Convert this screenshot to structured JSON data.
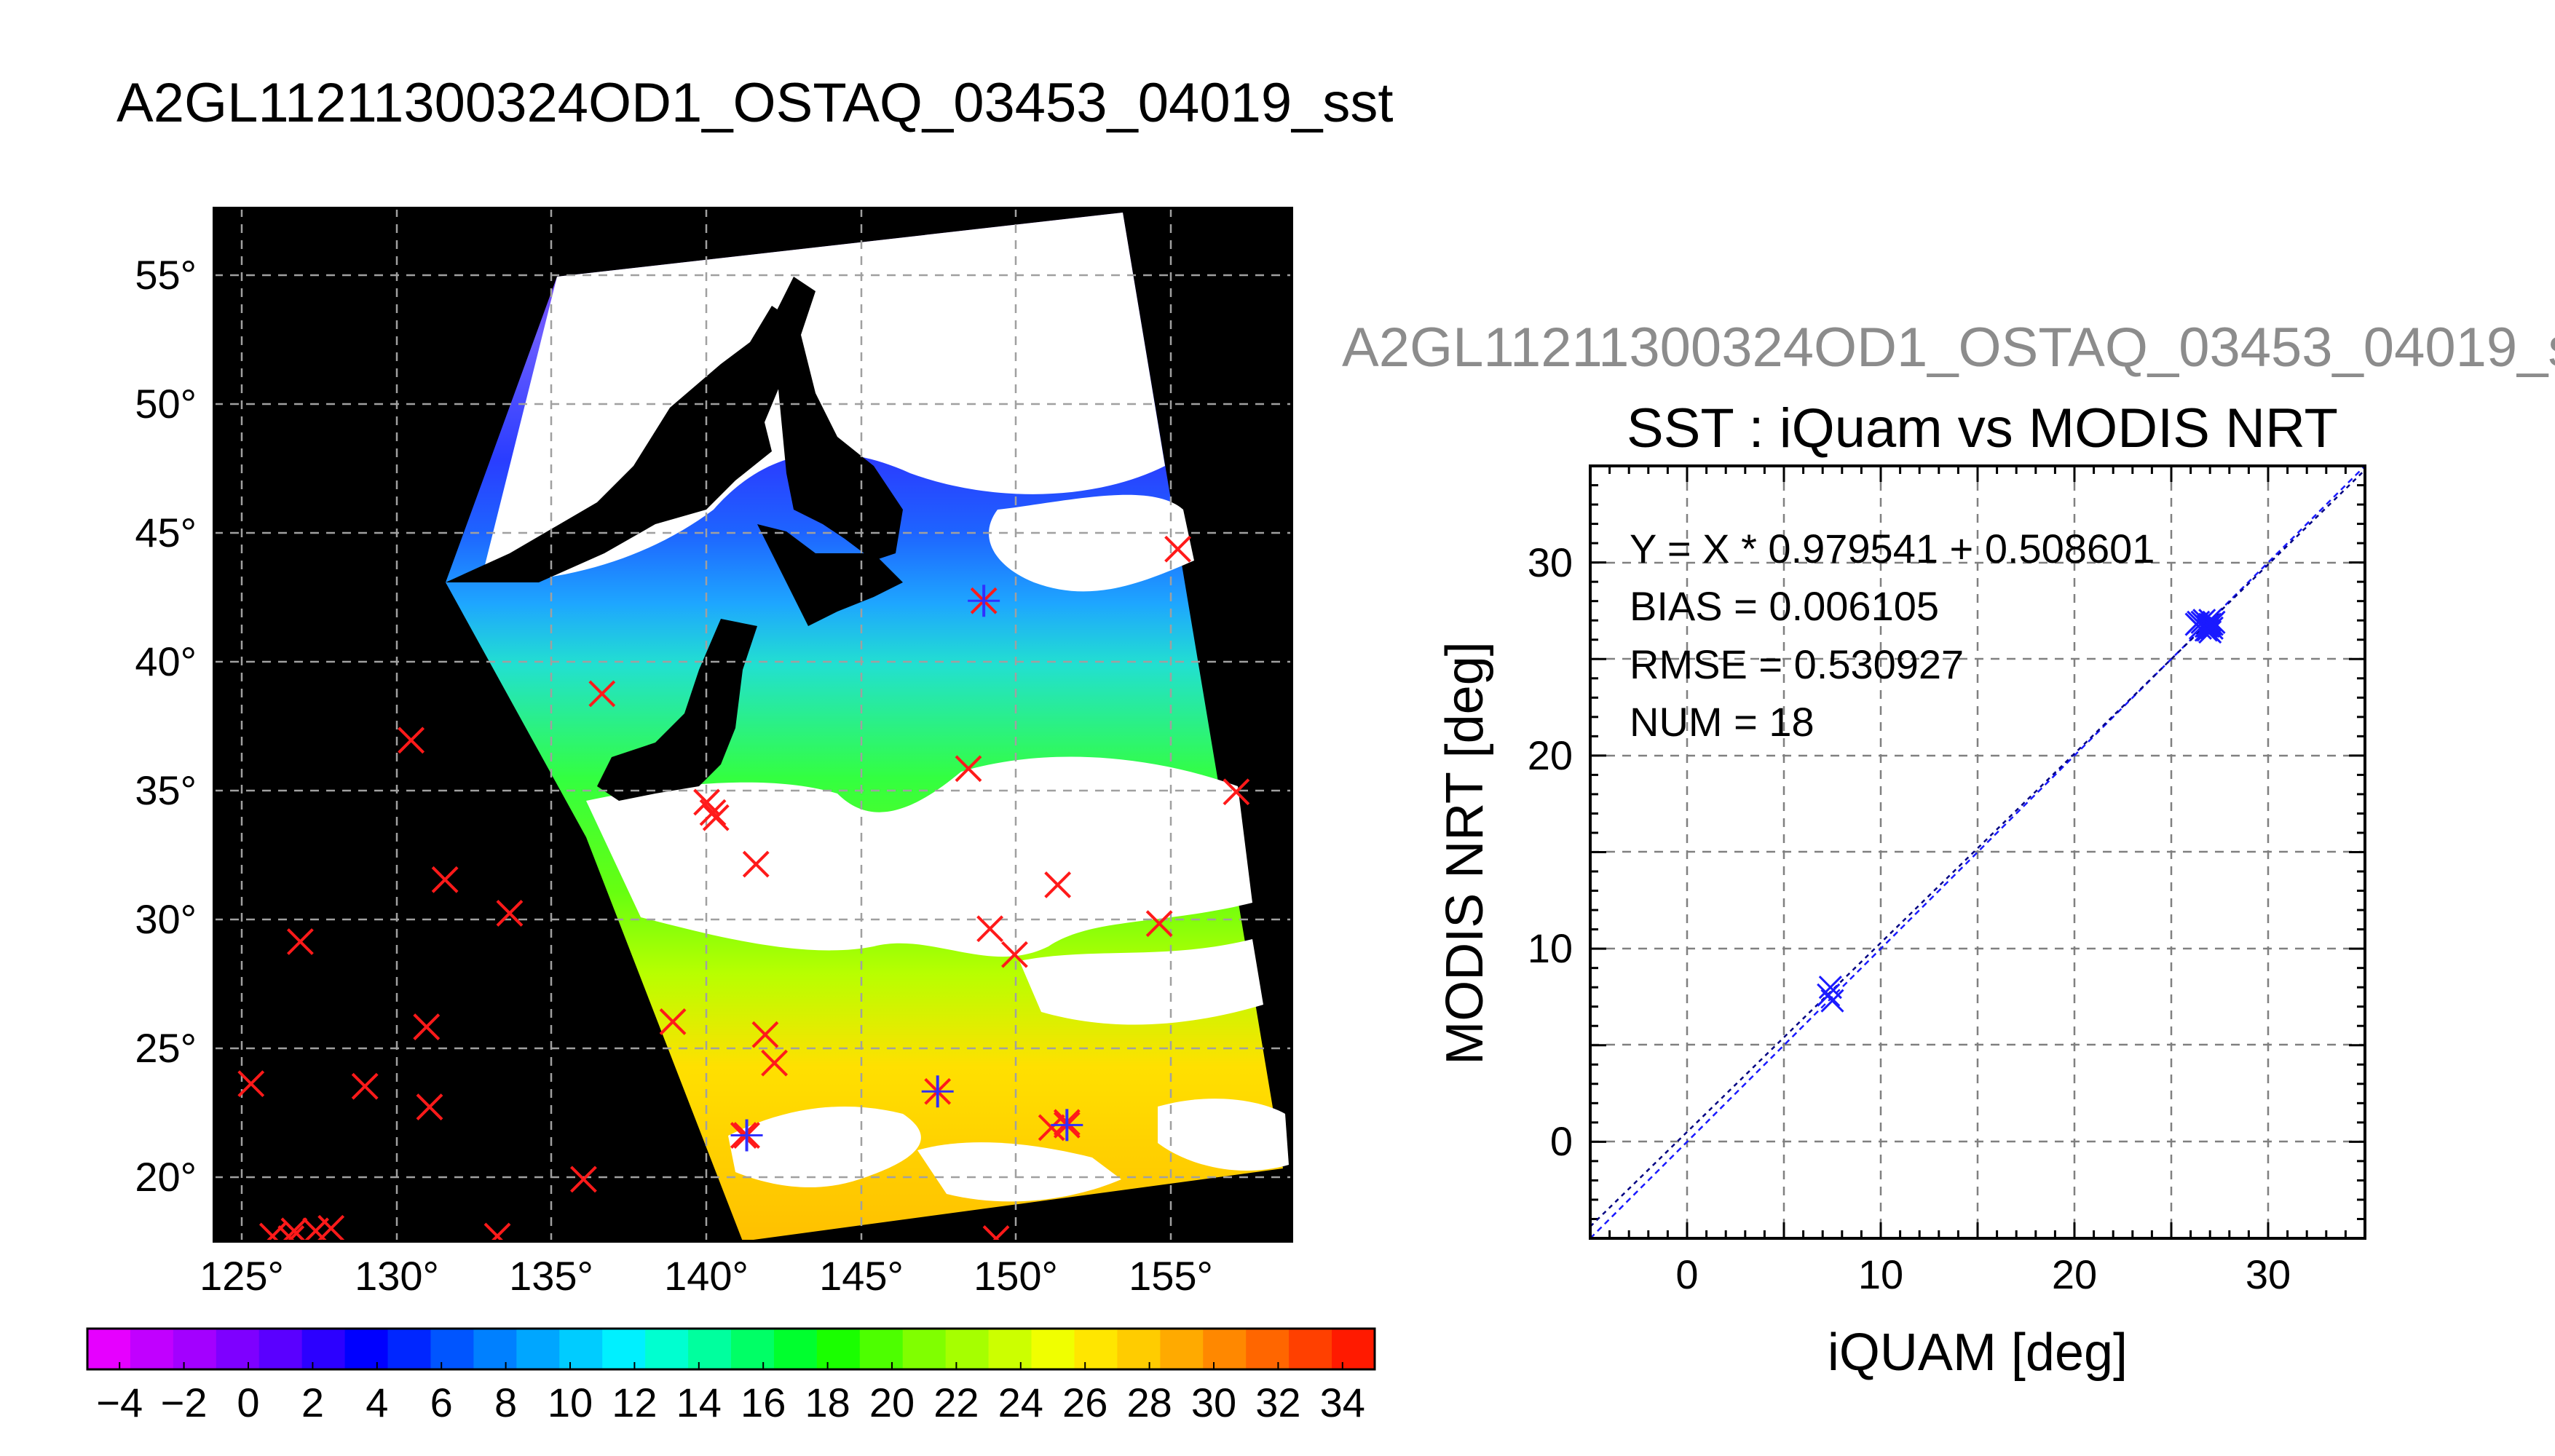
{
  "figure": {
    "title": "A2GL11211300324OD1_OSTAQ_03453_04019_sst",
    "scatter_subtitle": "A2GL11211300324OD1_OSTAQ_03453_04019_s"
  },
  "map": {
    "lon_ticks": [
      "125°",
      "130°",
      "135°",
      "140°",
      "145°",
      "150°",
      "155°"
    ],
    "lat_ticks": [
      "55°",
      "50°",
      "45°",
      "40°",
      "35°",
      "30°",
      "25°",
      "20°"
    ],
    "lon_range": [
      124,
      159
    ],
    "lat_range": [
      17.5,
      57.5
    ],
    "buoy_markers_red_x": [
      [
        155.3,
        44.3
      ],
      [
        136.6,
        38.7
      ],
      [
        130.4,
        36.9
      ],
      [
        157.2,
        34.9
      ],
      [
        148.5,
        35.8
      ],
      [
        140.0,
        34.5
      ],
      [
        140.2,
        34.1
      ],
      [
        140.3,
        33.9
      ],
      [
        141.6,
        32.1
      ],
      [
        151.4,
        31.3
      ],
      [
        131.5,
        31.5
      ],
      [
        133.6,
        30.2
      ],
      [
        126.8,
        29.1
      ],
      [
        149.2,
        29.6
      ],
      [
        150.0,
        28.6
      ],
      [
        154.7,
        29.8
      ],
      [
        138.9,
        26.0
      ],
      [
        130.9,
        25.8
      ],
      [
        141.9,
        25.5
      ],
      [
        142.2,
        24.4
      ],
      [
        125.2,
        23.6
      ],
      [
        128.9,
        23.5
      ],
      [
        131.0,
        22.7
      ],
      [
        151.2,
        21.9
      ],
      [
        151.7,
        22.1
      ],
      [
        141.2,
        21.6
      ],
      [
        136.0,
        19.9
      ],
      [
        127.8,
        18.0
      ],
      [
        126.6,
        17.9
      ],
      [
        125.9,
        17.7
      ],
      [
        127.3,
        17.9
      ],
      [
        133.2,
        17.7
      ],
      [
        149.4,
        17.6
      ],
      [
        126.5,
        17.6
      ]
    ],
    "matchups_blue_star": [
      [
        149.0,
        42.3
      ],
      [
        141.3,
        21.6
      ],
      [
        147.5,
        23.3
      ],
      [
        151.7,
        22.0
      ]
    ]
  },
  "colorbar": {
    "labels": [
      "-4",
      "-2",
      "0",
      "2",
      "4",
      "6",
      "8",
      "10",
      "12",
      "14",
      "16",
      "18",
      "20",
      "22",
      "24",
      "26",
      "28",
      "30",
      "32",
      "34"
    ],
    "range": [
      -5,
      35
    ],
    "colors": [
      "#e600ff",
      "#c100ff",
      "#a300ff",
      "#7e00ff",
      "#5a00ff",
      "#2c00ff",
      "#0000ff",
      "#0026ff",
      "#0055ff",
      "#0080ff",
      "#00a6ff",
      "#00ccff",
      "#00f0ff",
      "#00ffd0",
      "#00ff9e",
      "#00ff66",
      "#00ff2e",
      "#1aff00",
      "#4dff00",
      "#80ff00",
      "#a6ff00",
      "#ccff00",
      "#f0ff00",
      "#ffe600",
      "#ffcc00",
      "#ffaa00",
      "#ff8800",
      "#ff6600",
      "#ff4000",
      "#ff1a00"
    ]
  },
  "chart_data": {
    "type": "scatter",
    "title": "SST : iQuam vs MODIS NRT",
    "xlabel": "iQUAM [deg]",
    "ylabel": "MODIS NRT [deg]",
    "xlim": [
      -5,
      35
    ],
    "ylim": [
      -5,
      35
    ],
    "x_ticks": [
      "0",
      "10",
      "20",
      "30"
    ],
    "y_ticks": [
      "0",
      "10",
      "20",
      "30"
    ],
    "grid": true,
    "stats": [
      "Y = X * 0.979541 + 0.508601",
      "BIAS = 0.006105",
      "RMSE = 0.530927",
      "NUM = 18"
    ],
    "fit": {
      "slope": 0.979541,
      "intercept": 0.508601
    },
    "points": [
      [
        7.4,
        8.0
      ],
      [
        7.5,
        7.3
      ],
      [
        7.3,
        7.6
      ],
      [
        26.3,
        26.8
      ],
      [
        26.6,
        26.9
      ],
      [
        26.9,
        26.5
      ],
      [
        27.0,
        26.8
      ],
      [
        27.1,
        26.6
      ],
      [
        26.8,
        26.7
      ],
      [
        26.5,
        26.6
      ],
      [
        27.2,
        26.9
      ],
      [
        26.7,
        27.0
      ],
      [
        26.9,
        26.7
      ],
      [
        27.0,
        26.4
      ],
      [
        26.4,
        26.9
      ],
      [
        27.1,
        26.8
      ],
      [
        26.8,
        26.5
      ],
      [
        27.0,
        27.0
      ]
    ],
    "point_color": "#1a1aff",
    "fit_color": "#000080"
  }
}
